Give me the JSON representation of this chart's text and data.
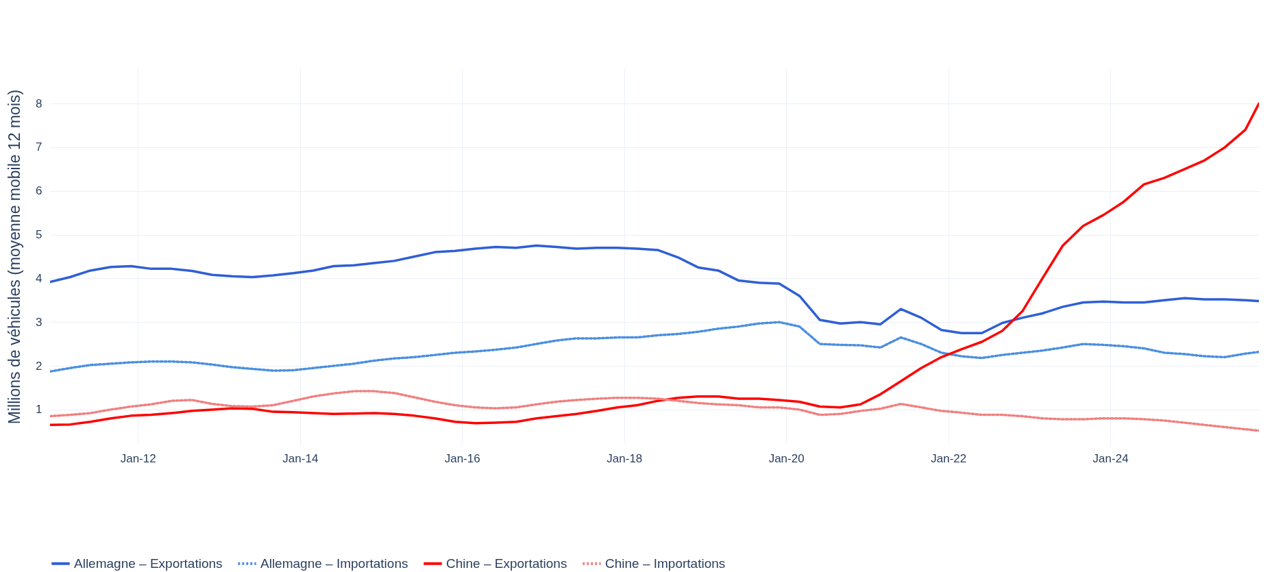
{
  "chart_data": {
    "type": "line",
    "ylabel": "Millions de véhicules (moyenne mobile 12 mois)",
    "x": [
      "2010-12",
      "2011-03",
      "2011-06",
      "2011-09",
      "2011-12",
      "2012-03",
      "2012-06",
      "2012-09",
      "2012-12",
      "2013-03",
      "2013-06",
      "2013-09",
      "2013-12",
      "2014-03",
      "2014-06",
      "2014-09",
      "2014-12",
      "2015-03",
      "2015-06",
      "2015-09",
      "2015-12",
      "2016-03",
      "2016-06",
      "2016-09",
      "2016-12",
      "2017-03",
      "2017-06",
      "2017-09",
      "2017-12",
      "2018-03",
      "2018-06",
      "2018-09",
      "2018-12",
      "2019-03",
      "2019-06",
      "2019-09",
      "2019-12",
      "2020-03",
      "2020-06",
      "2020-09",
      "2020-12",
      "2021-03",
      "2021-06",
      "2021-09",
      "2021-12",
      "2022-03",
      "2022-06",
      "2022-09",
      "2022-12",
      "2023-03",
      "2023-06",
      "2023-09",
      "2023-12",
      "2024-03",
      "2024-06",
      "2024-09",
      "2024-12",
      "2025-03",
      "2025-06",
      "2025-09",
      "2025-11"
    ],
    "series": [
      {
        "name": "Allemagne – Exportations",
        "color": "#2f5fd6",
        "line_style": "solid",
        "values": [
          3.92,
          4.03,
          4.18,
          4.26,
          4.28,
          4.22,
          4.22,
          4.17,
          4.08,
          4.05,
          4.03,
          4.07,
          4.12,
          4.18,
          4.28,
          4.3,
          4.35,
          4.4,
          4.5,
          4.6,
          4.63,
          4.68,
          4.72,
          4.7,
          4.75,
          4.72,
          4.68,
          4.7,
          4.7,
          4.68,
          4.65,
          4.48,
          4.25,
          4.18,
          3.95,
          3.9,
          3.88,
          3.6,
          3.05,
          2.97,
          3.0,
          2.95,
          3.3,
          3.1,
          2.82,
          2.75,
          2.75,
          2.98,
          3.1,
          3.2,
          3.35,
          3.45,
          3.47,
          3.45,
          3.45,
          3.5,
          3.55,
          3.52,
          3.52,
          3.5,
          3.48
        ]
      },
      {
        "name": "Allemagne – Importations",
        "color": "#4a8fe0",
        "line_style": "dotted",
        "values": [
          1.87,
          1.95,
          2.02,
          2.05,
          2.08,
          2.1,
          2.1,
          2.08,
          2.03,
          1.97,
          1.93,
          1.89,
          1.9,
          1.95,
          2.0,
          2.05,
          2.12,
          2.17,
          2.2,
          2.25,
          2.3,
          2.33,
          2.37,
          2.42,
          2.5,
          2.58,
          2.63,
          2.63,
          2.65,
          2.65,
          2.7,
          2.73,
          2.78,
          2.85,
          2.9,
          2.97,
          3.0,
          2.9,
          2.5,
          2.48,
          2.47,
          2.42,
          2.65,
          2.5,
          2.3,
          2.22,
          2.18,
          2.25,
          2.3,
          2.35,
          2.42,
          2.5,
          2.48,
          2.45,
          2.4,
          2.3,
          2.27,
          2.22,
          2.2,
          2.28,
          2.32
        ]
      },
      {
        "name": "Chine – Exportations",
        "color": "#ff0000",
        "line_style": "solid",
        "values": [
          0.65,
          0.66,
          0.72,
          0.8,
          0.86,
          0.88,
          0.92,
          0.97,
          1.0,
          1.03,
          1.02,
          0.95,
          0.94,
          0.92,
          0.9,
          0.91,
          0.92,
          0.9,
          0.86,
          0.8,
          0.72,
          0.69,
          0.7,
          0.72,
          0.8,
          0.85,
          0.9,
          0.97,
          1.05,
          1.1,
          1.2,
          1.27,
          1.3,
          1.3,
          1.25,
          1.25,
          1.22,
          1.18,
          1.07,
          1.05,
          1.12,
          1.35,
          1.65,
          1.95,
          2.2,
          2.38,
          2.55,
          2.8,
          3.25,
          4.0,
          4.75,
          5.2,
          5.45,
          5.75,
          6.15,
          6.3,
          6.5,
          6.7,
          7.0,
          7.4,
          8.0
        ]
      },
      {
        "name": "Chine – Importations",
        "color": "#f08080",
        "line_style": "dotted",
        "values": [
          0.85,
          0.88,
          0.92,
          1.0,
          1.07,
          1.12,
          1.2,
          1.22,
          1.13,
          1.08,
          1.07,
          1.1,
          1.2,
          1.3,
          1.37,
          1.42,
          1.42,
          1.38,
          1.28,
          1.18,
          1.1,
          1.05,
          1.03,
          1.05,
          1.12,
          1.18,
          1.22,
          1.25,
          1.27,
          1.27,
          1.25,
          1.2,
          1.15,
          1.12,
          1.1,
          1.05,
          1.05,
          1.0,
          0.88,
          0.9,
          0.97,
          1.02,
          1.13,
          1.05,
          0.97,
          0.93,
          0.88,
          0.88,
          0.85,
          0.8,
          0.78,
          0.78,
          0.8,
          0.8,
          0.78,
          0.75,
          0.7,
          0.65,
          0.6,
          0.55,
          0.52
        ]
      }
    ],
    "xlim": [
      "2010-12",
      "2025-11"
    ],
    "xticks": [
      {
        "value": "2012-01",
        "label": "Jan-12"
      },
      {
        "value": "2014-01",
        "label": "Jan-14"
      },
      {
        "value": "2016-01",
        "label": "Jan-16"
      },
      {
        "value": "2018-01",
        "label": "Jan-18"
      },
      {
        "value": "2020-01",
        "label": "Jan-20"
      },
      {
        "value": "2022-01",
        "label": "Jan-22"
      },
      {
        "value": "2024-01",
        "label": "Jan-24"
      }
    ],
    "ylim": [
      0.2,
      8.8
    ],
    "yticks": [
      1,
      2,
      3,
      4,
      5,
      6,
      7,
      8
    ],
    "grid": true,
    "legend": "bottom",
    "marker": "none"
  }
}
